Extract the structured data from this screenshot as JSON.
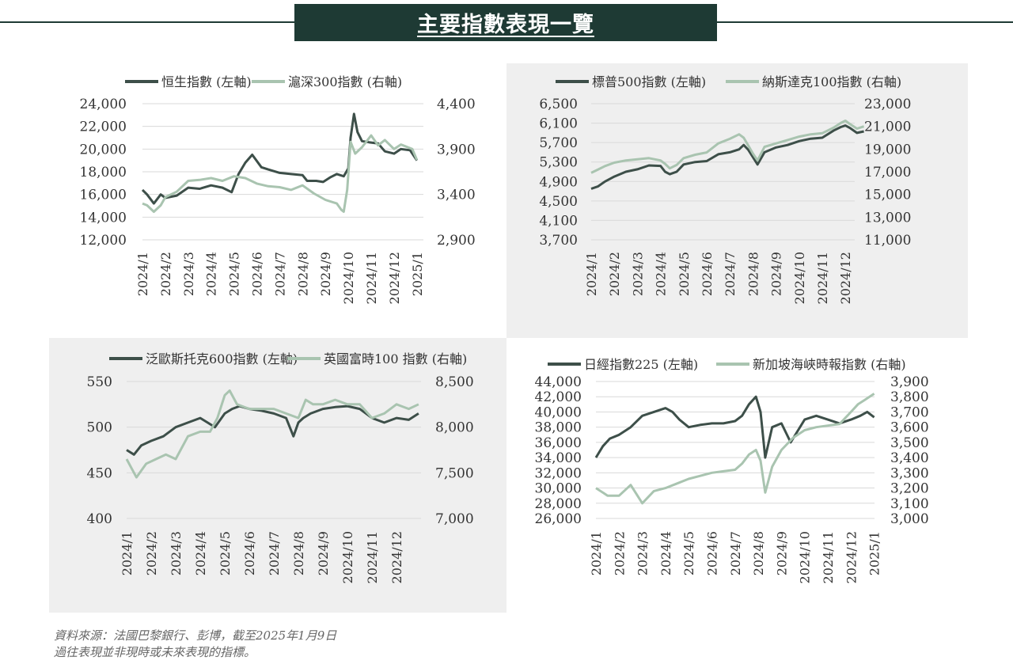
{
  "title": "主要指數表現一覽",
  "footnote": {
    "line1": "資料來源：法國巴黎銀行、彭博，截至2025年1月9日",
    "line2": "過往表現並非現時或未來表現的指標。"
  },
  "colors": {
    "dark": "#3d4f49",
    "light": "#a9c4b0",
    "header": "#1e3a34",
    "panel_bg": "#efefef",
    "grid": "#d9d9d9"
  },
  "chart_data": [
    {
      "type": "line",
      "legend": [
        "恒生指數 (左軸)",
        "滬深300指數 (右軸)"
      ],
      "x_ticks": [
        "2024/1",
        "2024/2",
        "2024/3",
        "2024/4",
        "2024/5",
        "2024/6",
        "2024/7",
        "2024/8",
        "2024/9",
        "2024/10",
        "2024/11",
        "2024/12",
        "2025/1"
      ],
      "y_left": {
        "range": [
          12000,
          24000
        ],
        "ticks": [
          "24,000",
          "22,000",
          "20,000",
          "18,000",
          "16,000",
          "14,000",
          "12,000"
        ]
      },
      "y_right": {
        "range": [
          2900,
          4400
        ],
        "ticks": [
          "4,400",
          "3,900",
          "3,400",
          "2,900"
        ]
      },
      "series": [
        {
          "name": "恒生指數 (左軸)",
          "axis": "left",
          "color": "dark",
          "x": [
            0,
            0.2,
            0.5,
            0.8,
            1.0,
            1.5,
            2.0,
            2.5,
            3.0,
            3.5,
            3.9,
            4.2,
            4.5,
            4.8,
            5.2,
            5.5,
            6.0,
            6.5,
            7.0,
            7.2,
            7.6,
            7.9,
            8.2,
            8.5,
            8.8,
            9.0,
            9.1,
            9.25,
            9.4,
            9.6,
            9.9,
            10.3,
            10.6,
            11.0,
            11.3,
            11.7,
            12.0
          ],
          "y": [
            16400,
            16000,
            15200,
            16000,
            15700,
            15900,
            16600,
            16500,
            16800,
            16600,
            16200,
            17800,
            18800,
            19500,
            18400,
            18200,
            17900,
            17800,
            17700,
            17200,
            17200,
            17100,
            17500,
            17800,
            17600,
            18300,
            21000,
            23100,
            21500,
            20700,
            20600,
            20500,
            19800,
            19600,
            20000,
            19900,
            19000
          ]
        },
        {
          "name": "滬深300指數 (右軸)",
          "axis": "right",
          "color": "light",
          "x": [
            0,
            0.2,
            0.5,
            0.8,
            1.0,
            1.5,
            2.0,
            2.5,
            3.0,
            3.5,
            4.0,
            4.5,
            5.0,
            5.5,
            6.0,
            6.5,
            7.0,
            7.5,
            8.0,
            8.5,
            8.7,
            8.8,
            8.95,
            9.1,
            9.3,
            9.6,
            10.0,
            10.3,
            10.6,
            11.0,
            11.3,
            11.6,
            11.8,
            12.0
          ],
          "y": [
            3300,
            3280,
            3210,
            3280,
            3370,
            3430,
            3550,
            3560,
            3580,
            3550,
            3600,
            3580,
            3520,
            3490,
            3480,
            3450,
            3500,
            3410,
            3340,
            3300,
            3230,
            3210,
            3450,
            3980,
            3850,
            3920,
            4050,
            3940,
            4000,
            3900,
            3950,
            3920,
            3900,
            3780
          ]
        }
      ]
    },
    {
      "type": "line",
      "legend": [
        "標普500指數 (左軸)",
        "納斯達克100指數 (右軸)"
      ],
      "x_ticks": [
        "2024/1",
        "2024/2",
        "2024/3",
        "2024/4",
        "2024/5",
        "2024/6",
        "2024/7",
        "2024/8",
        "2024/9",
        "2024/10",
        "2024/11",
        "2024/12"
      ],
      "y_left": {
        "range": [
          3700,
          6500
        ],
        "ticks": [
          "6,500",
          "6,100",
          "5,700",
          "5,300",
          "4,900",
          "4,500",
          "4,100",
          "3,700"
        ]
      },
      "y_right": {
        "range": [
          11000,
          23000
        ],
        "ticks": [
          "23,000",
          "21,000",
          "19,000",
          "17,000",
          "15,000",
          "13,000",
          "11,000"
        ]
      },
      "series": [
        {
          "name": "標普500指數 (左軸)",
          "axis": "left",
          "color": "dark",
          "x": [
            0,
            0.3,
            0.6,
            1.0,
            1.5,
            2.0,
            2.5,
            3.0,
            3.2,
            3.4,
            3.7,
            4.0,
            4.5,
            5.0,
            5.5,
            6.0,
            6.4,
            6.6,
            6.8,
            7.0,
            7.2,
            7.5,
            8.0,
            8.5,
            9.0,
            9.5,
            10.0,
            10.5,
            10.8,
            11.0,
            11.2,
            11.5,
            11.8
          ],
          "y": [
            4750,
            4800,
            4900,
            5000,
            5100,
            5150,
            5230,
            5220,
            5100,
            5050,
            5100,
            5250,
            5300,
            5320,
            5460,
            5500,
            5560,
            5650,
            5550,
            5400,
            5250,
            5500,
            5600,
            5650,
            5730,
            5780,
            5800,
            5950,
            6020,
            6050,
            6000,
            5900,
            5930
          ]
        },
        {
          "name": "納斯達克100指數 (右軸)",
          "axis": "right",
          "color": "light",
          "x": [
            0,
            0.3,
            0.6,
            1.0,
            1.5,
            2.0,
            2.5,
            3.0,
            3.2,
            3.4,
            3.7,
            4.0,
            4.5,
            5.0,
            5.5,
            6.0,
            6.4,
            6.6,
            6.8,
            7.0,
            7.2,
            7.5,
            8.0,
            8.5,
            9.0,
            9.5,
            10.0,
            10.5,
            10.8,
            11.0,
            11.2,
            11.5,
            11.8
          ],
          "y": [
            16900,
            17200,
            17500,
            17800,
            18000,
            18100,
            18200,
            18000,
            17700,
            17300,
            17600,
            18200,
            18500,
            18700,
            19500,
            19900,
            20300,
            20000,
            19300,
            18600,
            18000,
            19200,
            19500,
            19800,
            20100,
            20300,
            20400,
            20900,
            21300,
            21500,
            21200,
            20800,
            21000
          ]
        }
      ]
    },
    {
      "type": "line",
      "legend": [
        "泛歐斯托克600指數 (左軸)",
        "英國富時100 指數 (右軸)"
      ],
      "x_ticks": [
        "2024/1",
        "2024/2",
        "2024/3",
        "2024/4",
        "2024/5",
        "2024/6",
        "2024/7",
        "2024/8",
        "2024/9",
        "2024/10",
        "2024/11",
        "2024/12"
      ],
      "y_left": {
        "range": [
          400,
          550
        ],
        "ticks": [
          "550",
          "500",
          "450",
          "400"
        ]
      },
      "y_right": {
        "range": [
          7000,
          8500
        ],
        "ticks": [
          "8,500",
          "8,000",
          "7,500",
          "7,000"
        ]
      },
      "series": [
        {
          "name": "泛歐斯托克600指數 (左軸)",
          "axis": "left",
          "color": "dark",
          "x": [
            0,
            0.3,
            0.6,
            1.0,
            1.5,
            2.0,
            2.5,
            3.0,
            3.3,
            3.6,
            4.0,
            4.3,
            4.6,
            5.0,
            5.5,
            6.0,
            6.5,
            6.8,
            7.0,
            7.2,
            7.5,
            8.0,
            8.5,
            9.0,
            9.5,
            10.0,
            10.5,
            11.0,
            11.5,
            11.9
          ],
          "y": [
            475,
            470,
            480,
            485,
            490,
            500,
            505,
            510,
            505,
            500,
            515,
            520,
            523,
            520,
            518,
            515,
            510,
            490,
            505,
            510,
            515,
            520,
            522,
            523,
            520,
            510,
            505,
            510,
            508,
            515
          ]
        },
        {
          "name": "英國富時100 指數 (右軸)",
          "axis": "right",
          "color": "light",
          "x": [
            0,
            0.2,
            0.4,
            0.8,
            1.2,
            1.6,
            2.0,
            2.5,
            3.0,
            3.4,
            3.7,
            4.0,
            4.2,
            4.5,
            5.0,
            5.5,
            6.0,
            6.5,
            7.0,
            7.3,
            7.6,
            8.0,
            8.5,
            9.0,
            9.5,
            10.0,
            10.5,
            11.0,
            11.5,
            11.9
          ],
          "y": [
            7650,
            7550,
            7450,
            7600,
            7650,
            7700,
            7650,
            7900,
            7950,
            7950,
            8100,
            8350,
            8400,
            8250,
            8200,
            8200,
            8200,
            8150,
            8100,
            8300,
            8250,
            8250,
            8300,
            8250,
            8250,
            8100,
            8150,
            8250,
            8200,
            8250
          ]
        }
      ]
    },
    {
      "type": "line",
      "legend": [
        "日經指數225 (左軸)",
        "新加坡海峽時報指數 (右軸)"
      ],
      "x_ticks": [
        "2024/1",
        "2024/2",
        "2024/3",
        "2024/4",
        "2024/5",
        "2024/6",
        "2024/7",
        "2024/8",
        "2024/9",
        "2024/10",
        "2024/11",
        "2024/12",
        "2025/1"
      ],
      "y_left": {
        "range": [
          26000,
          44000
        ],
        "ticks": [
          "44,000",
          "42,000",
          "40,000",
          "38,000",
          "36,000",
          "34,000",
          "32,000",
          "30,000",
          "28,000",
          "26,000"
        ]
      },
      "y_right": {
        "range": [
          3000,
          3900
        ],
        "ticks": [
          "3,900",
          "3,800",
          "3,700",
          "3,600",
          "3,500",
          "3,400",
          "3,300",
          "3,200",
          "3,100",
          "3,000"
        ]
      },
      "series": [
        {
          "name": "日經指數225 (左軸)",
          "axis": "left",
          "color": "dark",
          "x": [
            0,
            0.3,
            0.6,
            1.0,
            1.5,
            2.0,
            2.5,
            3.0,
            3.3,
            3.6,
            4.0,
            4.5,
            5.0,
            5.5,
            6.0,
            6.3,
            6.6,
            6.9,
            7.1,
            7.3,
            7.6,
            8.0,
            8.4,
            8.7,
            9.0,
            9.5,
            10.0,
            10.5,
            11.0,
            11.4,
            11.7,
            12.0
          ],
          "y": [
            34000,
            35500,
            36500,
            37000,
            38000,
            39500,
            40000,
            40500,
            40000,
            39000,
            38000,
            38300,
            38500,
            38500,
            38800,
            39500,
            41000,
            42000,
            40000,
            34000,
            38000,
            38500,
            36000,
            37500,
            39000,
            39500,
            39000,
            38500,
            39000,
            39500,
            40000,
            39300
          ]
        },
        {
          "name": "新加坡海峽時報指數 (右軸)",
          "axis": "right",
          "color": "light",
          "x": [
            0,
            0.5,
            1.0,
            1.5,
            2.0,
            2.5,
            3.0,
            3.5,
            4.0,
            4.5,
            5.0,
            5.5,
            6.0,
            6.3,
            6.6,
            6.9,
            7.1,
            7.3,
            7.6,
            8.0,
            8.5,
            9.0,
            9.5,
            10.0,
            10.5,
            11.0,
            11.3,
            11.6,
            12.0
          ],
          "y": [
            3200,
            3150,
            3150,
            3220,
            3100,
            3180,
            3200,
            3230,
            3260,
            3280,
            3300,
            3310,
            3320,
            3360,
            3420,
            3450,
            3380,
            3170,
            3340,
            3450,
            3530,
            3580,
            3600,
            3610,
            3620,
            3700,
            3750,
            3780,
            3820
          ]
        }
      ]
    }
  ]
}
